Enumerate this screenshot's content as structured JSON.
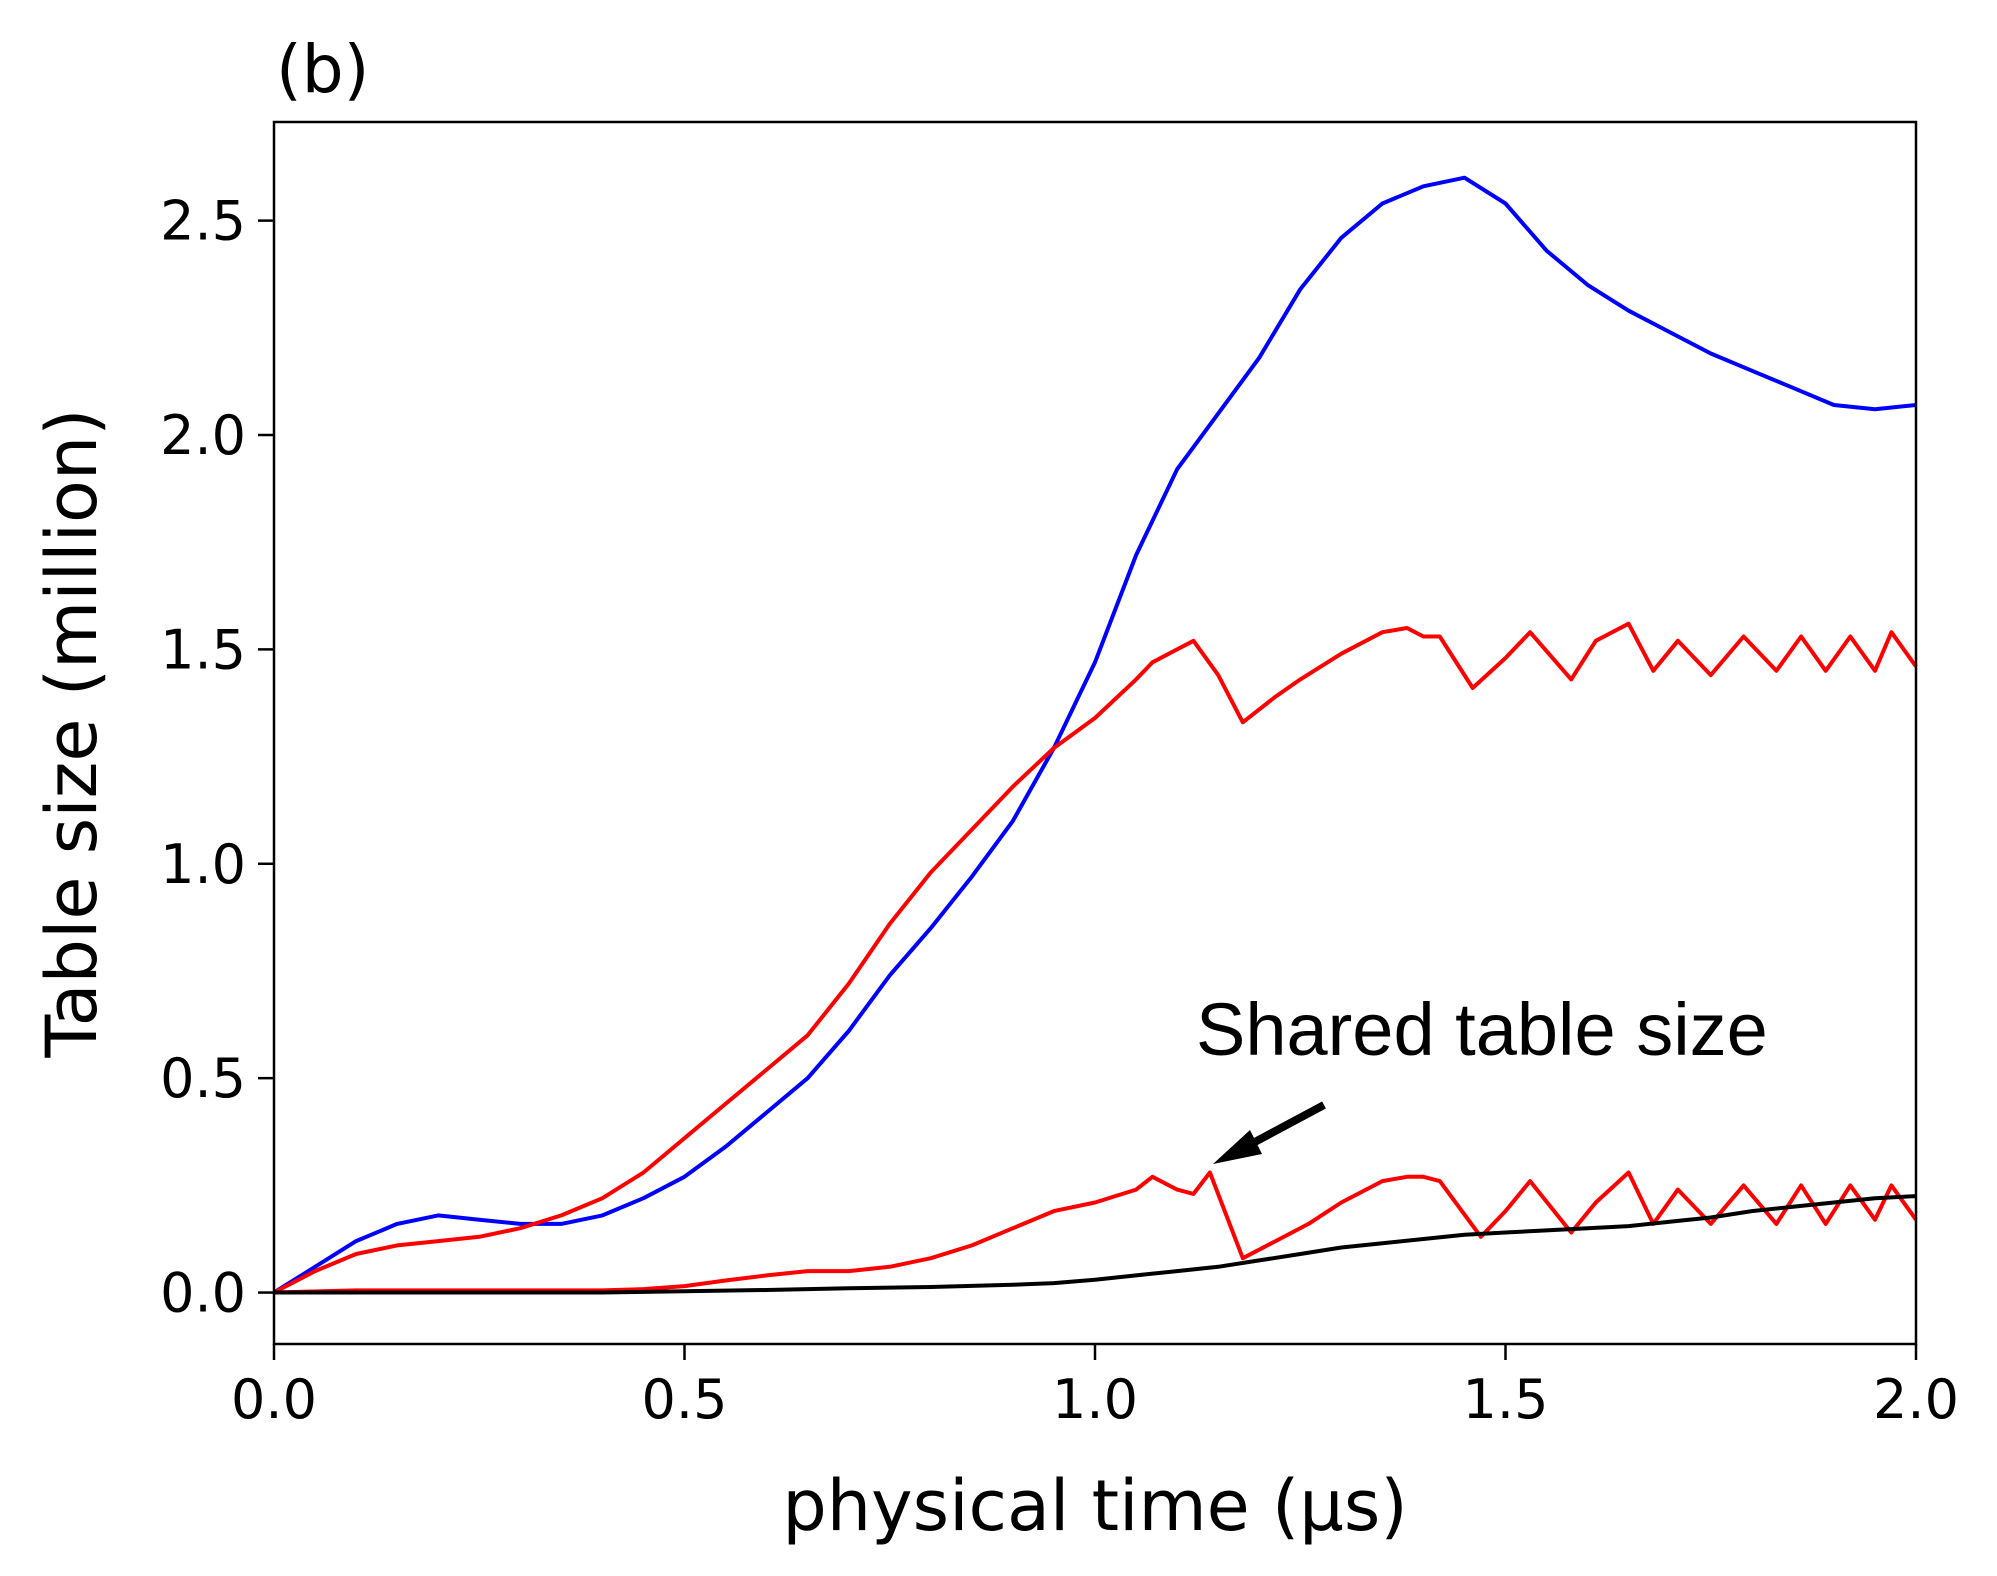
{
  "chart_data": {
    "type": "line",
    "panel_label": "(b)",
    "title": "",
    "xlabel": "physical time (μs)",
    "ylabel": "Table size (million)",
    "xlim": [
      0.0,
      2.0
    ],
    "ylim": [
      -0.12,
      2.73
    ],
    "x_ticks": [
      0.0,
      0.5,
      1.0,
      1.5,
      2.0
    ],
    "x_tick_labels": [
      "0.0",
      "0.5",
      "1.0",
      "1.5",
      "2.0"
    ],
    "y_ticks": [
      0.0,
      0.5,
      1.0,
      1.5,
      2.0,
      2.5
    ],
    "y_tick_labels": [
      "0.0",
      "0.5",
      "1.0",
      "1.5",
      "2.0",
      "2.5"
    ],
    "grid": false,
    "legend": "none",
    "annotation": {
      "text": "Shared table size",
      "target": [
        1.14,
        0.29
      ]
    },
    "series": [
      {
        "color": "#0000ff",
        "x": [
          0.0,
          0.05,
          0.1,
          0.15,
          0.2,
          0.25,
          0.3,
          0.35,
          0.4,
          0.45,
          0.5,
          0.55,
          0.6,
          0.65,
          0.7,
          0.75,
          0.8,
          0.85,
          0.9,
          0.95,
          1.0,
          1.05,
          1.1,
          1.15,
          1.2,
          1.25,
          1.3,
          1.35,
          1.4,
          1.45,
          1.5,
          1.55,
          1.6,
          1.65,
          1.7,
          1.75,
          1.8,
          1.85,
          1.9,
          1.95,
          2.0
        ],
        "y": [
          0.0,
          0.06,
          0.12,
          0.16,
          0.18,
          0.17,
          0.16,
          0.16,
          0.18,
          0.22,
          0.27,
          0.34,
          0.42,
          0.5,
          0.61,
          0.74,
          0.85,
          0.97,
          1.1,
          1.27,
          1.47,
          1.72,
          1.92,
          2.05,
          2.18,
          2.34,
          2.46,
          2.54,
          2.58,
          2.6,
          2.54,
          2.43,
          2.35,
          2.29,
          2.24,
          2.19,
          2.15,
          2.11,
          2.07,
          2.06,
          2.07
        ]
      },
      {
        "color": "#ff0000",
        "x": [
          0.0,
          0.05,
          0.1,
          0.15,
          0.2,
          0.25,
          0.3,
          0.35,
          0.4,
          0.45,
          0.5,
          0.55,
          0.6,
          0.65,
          0.7,
          0.75,
          0.8,
          0.85,
          0.9,
          0.95,
          1.0,
          1.05,
          1.07,
          1.1,
          1.12,
          1.15,
          1.18,
          1.22,
          1.25,
          1.3,
          1.35,
          1.38,
          1.4,
          1.42,
          1.46,
          1.5,
          1.53,
          1.58,
          1.61,
          1.65,
          1.68,
          1.71,
          1.75,
          1.79,
          1.83,
          1.86,
          1.89,
          1.92,
          1.95,
          1.97,
          2.0
        ],
        "y": [
          0.0,
          0.05,
          0.09,
          0.11,
          0.12,
          0.13,
          0.15,
          0.18,
          0.22,
          0.28,
          0.36,
          0.44,
          0.52,
          0.6,
          0.72,
          0.86,
          0.98,
          1.08,
          1.18,
          1.27,
          1.34,
          1.43,
          1.47,
          1.5,
          1.52,
          1.44,
          1.33,
          1.39,
          1.43,
          1.49,
          1.54,
          1.55,
          1.53,
          1.53,
          1.41,
          1.48,
          1.54,
          1.43,
          1.52,
          1.56,
          1.45,
          1.52,
          1.44,
          1.53,
          1.45,
          1.53,
          1.45,
          1.53,
          1.45,
          1.54,
          1.46
        ]
      },
      {
        "color": "#ff0000",
        "x": [
          0.0,
          0.1,
          0.2,
          0.3,
          0.4,
          0.45,
          0.5,
          0.55,
          0.6,
          0.65,
          0.7,
          0.75,
          0.8,
          0.85,
          0.9,
          0.95,
          1.0,
          1.05,
          1.07,
          1.1,
          1.12,
          1.14,
          1.18,
          1.22,
          1.26,
          1.3,
          1.35,
          1.38,
          1.4,
          1.42,
          1.47,
          1.5,
          1.53,
          1.58,
          1.61,
          1.65,
          1.68,
          1.71,
          1.75,
          1.79,
          1.83,
          1.86,
          1.89,
          1.92,
          1.95,
          1.97,
          2.0
        ],
        "y": [
          0.0,
          0.005,
          0.005,
          0.005,
          0.005,
          0.008,
          0.015,
          0.028,
          0.04,
          0.05,
          0.05,
          0.06,
          0.08,
          0.11,
          0.15,
          0.19,
          0.21,
          0.24,
          0.27,
          0.24,
          0.23,
          0.28,
          0.08,
          0.12,
          0.16,
          0.21,
          0.26,
          0.27,
          0.27,
          0.26,
          0.13,
          0.19,
          0.26,
          0.14,
          0.21,
          0.28,
          0.16,
          0.24,
          0.16,
          0.25,
          0.16,
          0.25,
          0.16,
          0.25,
          0.17,
          0.25,
          0.17
        ]
      },
      {
        "color": "#000000",
        "x": [
          0.0,
          0.1,
          0.2,
          0.3,
          0.4,
          0.5,
          0.6,
          0.7,
          0.8,
          0.9,
          0.95,
          1.0,
          1.05,
          1.1,
          1.15,
          1.2,
          1.25,
          1.3,
          1.35,
          1.4,
          1.45,
          1.5,
          1.55,
          1.6,
          1.65,
          1.7,
          1.75,
          1.8,
          1.85,
          1.9,
          1.95,
          2.0
        ],
        "y": [
          0.0,
          0.0,
          0.0,
          0.0,
          0.0,
          0.003,
          0.006,
          0.01,
          0.013,
          0.018,
          0.022,
          0.03,
          0.04,
          0.05,
          0.06,
          0.075,
          0.09,
          0.105,
          0.115,
          0.125,
          0.135,
          0.14,
          0.145,
          0.15,
          0.155,
          0.165,
          0.175,
          0.19,
          0.2,
          0.21,
          0.22,
          0.225
        ]
      }
    ]
  }
}
